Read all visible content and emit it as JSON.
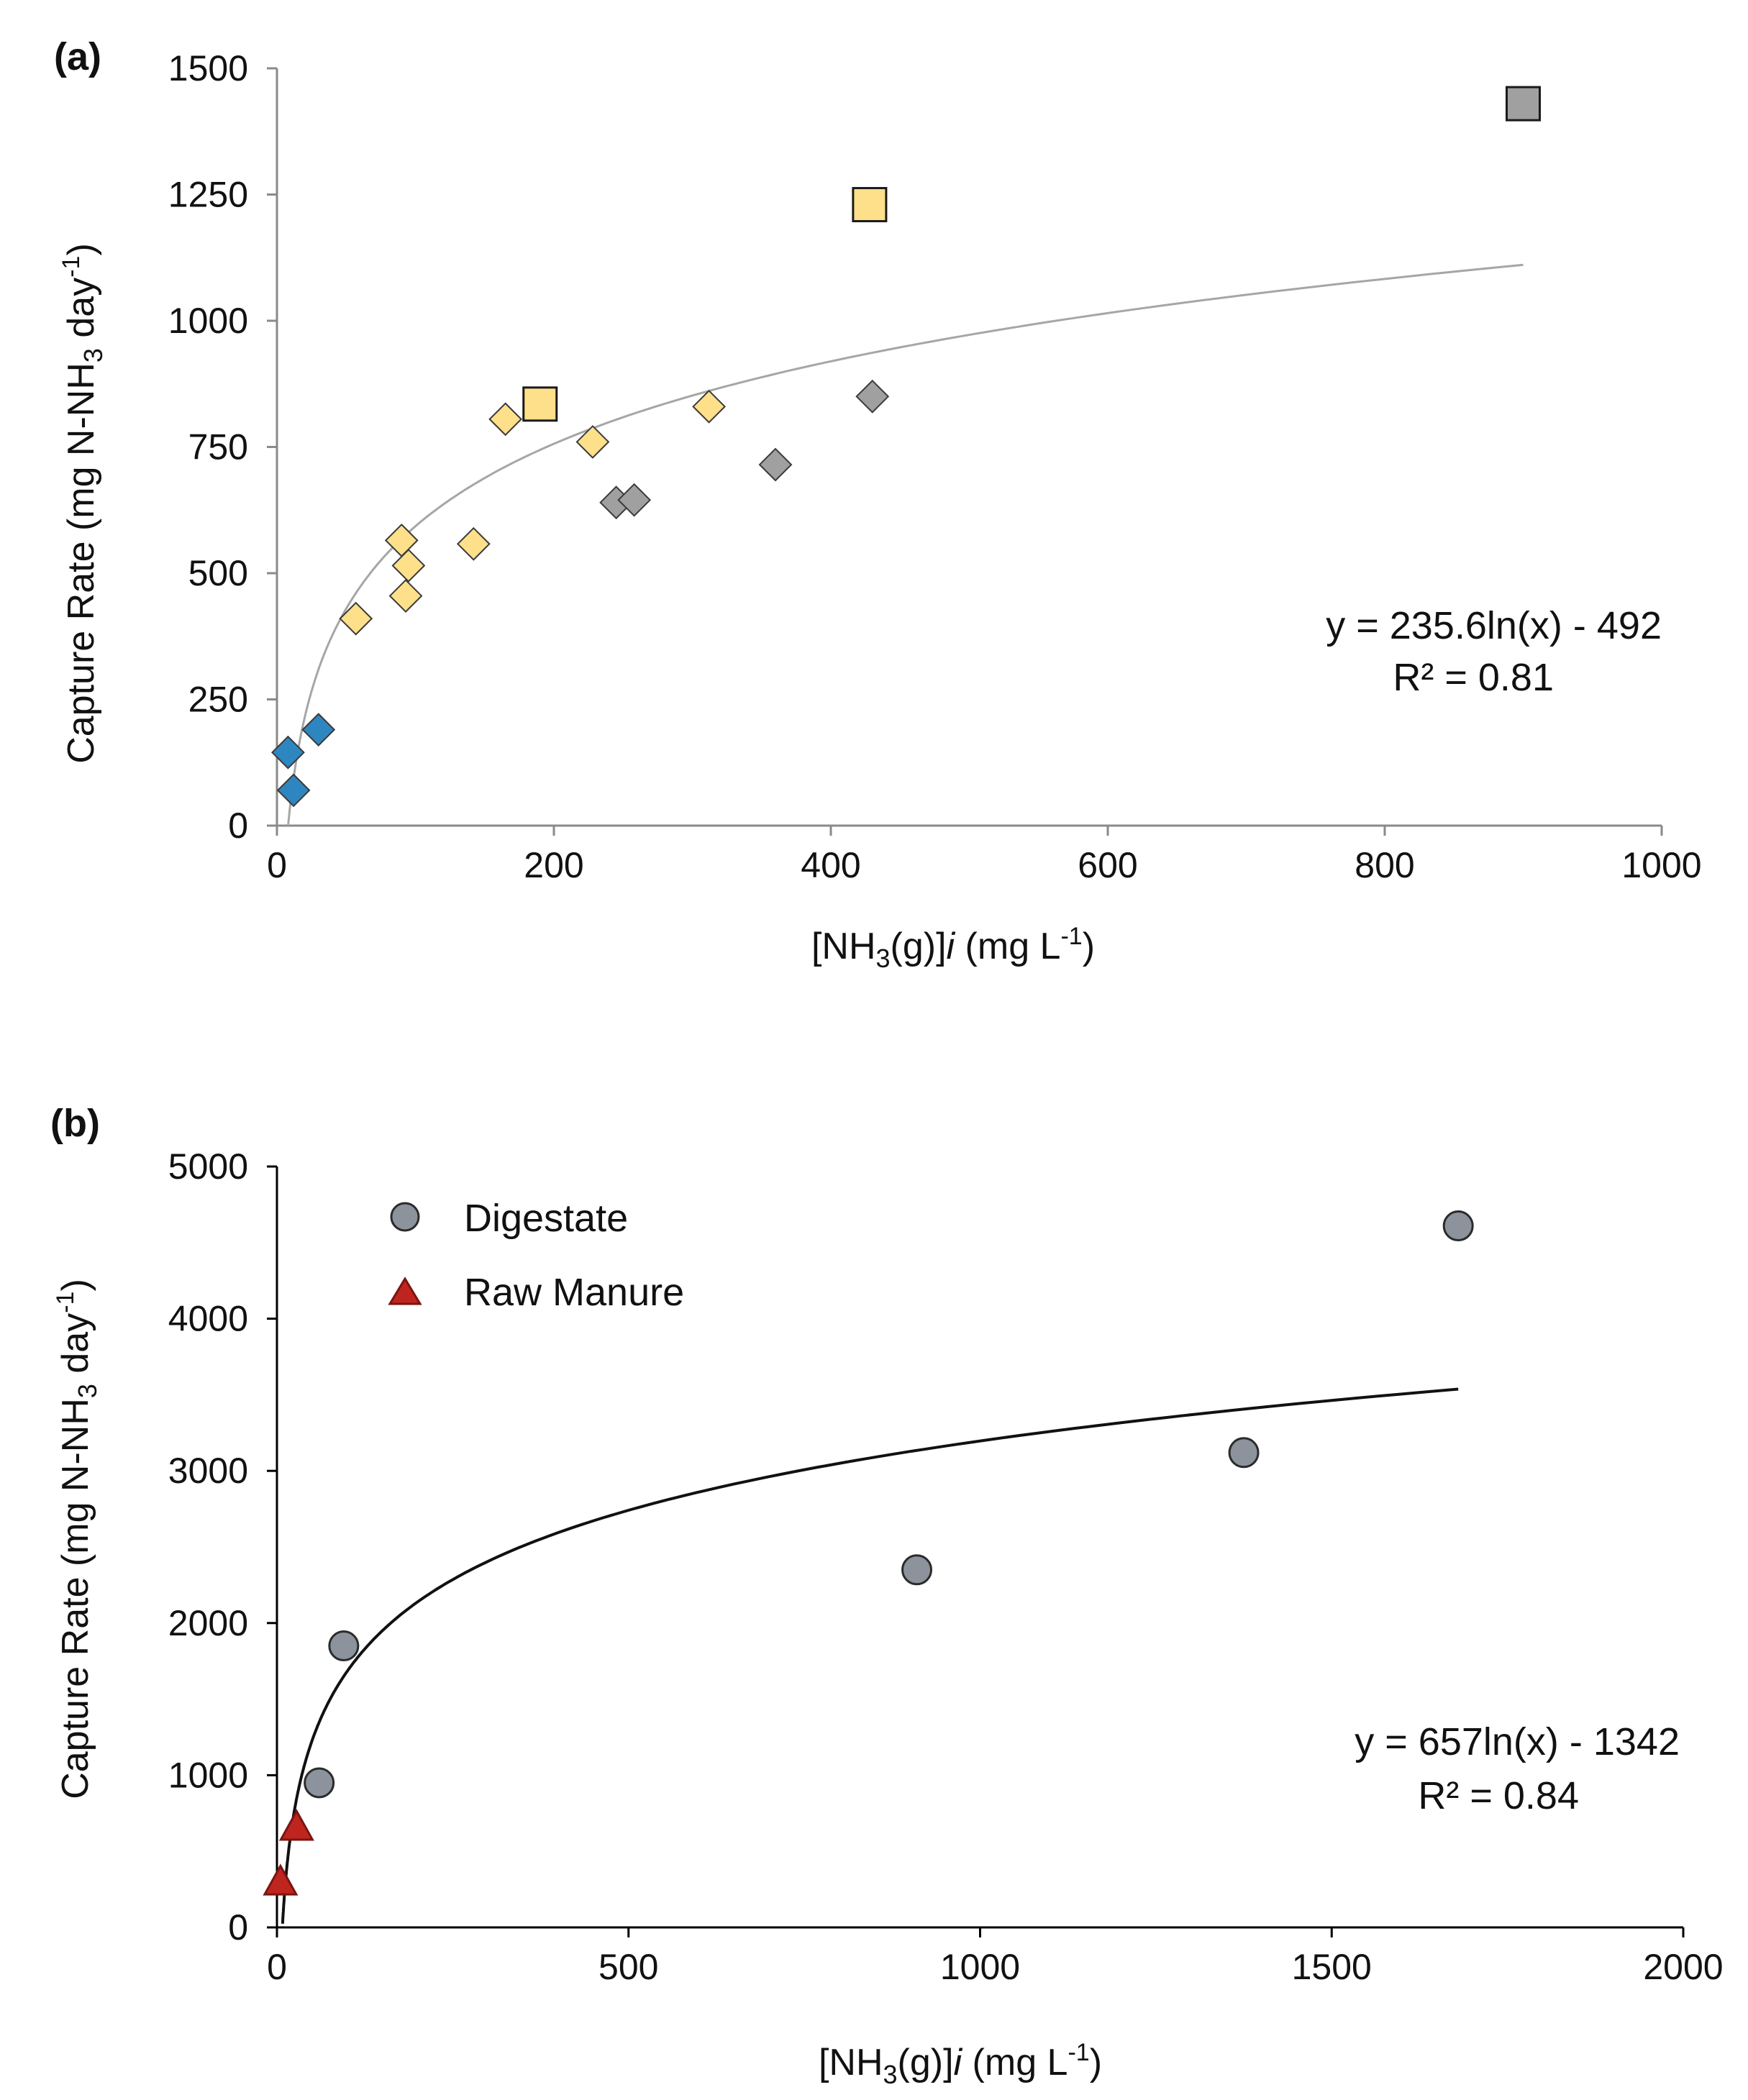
{
  "chart_data": [
    {
      "type": "scatter",
      "panel_label": "(a)",
      "ylabel": "Capture Rate (mg N-NH3 day-1)",
      "ylabel_parts": {
        "pre": "Capture Rate (mg N-NH",
        "sub": "3",
        "mid": " day",
        "sup": "-1",
        "post": ")"
      },
      "xlabel": "[NH3(g)]i (mg L-1)",
      "xlabel_parts": {
        "pre": "[NH",
        "sub": "3",
        "mid": "(g)]",
        "italic": "i",
        "mid2": " (mg L",
        "sup": "-1",
        "post": ")"
      },
      "xlim": [
        0,
        1000
      ],
      "ylim": [
        0,
        1500
      ],
      "x_ticks": [
        "0",
        "200",
        "400",
        "600",
        "800",
        "1000"
      ],
      "y_ticks": [
        "0",
        "250",
        "500",
        "750",
        "1000",
        "1250",
        "1500"
      ],
      "grid": false,
      "series": [
        {
          "name": "blue diamonds",
          "marker": "diamond",
          "color": "#2e86c1",
          "x": [
            8,
            12,
            30
          ],
          "y": [
            145,
            70,
            190
          ]
        },
        {
          "name": "yellow diamonds",
          "marker": "diamond",
          "color": "#ffe08a",
          "x": [
            57,
            90,
            93,
            95,
            142,
            165,
            228,
            312
          ],
          "y": [
            410,
            565,
            455,
            515,
            558,
            805,
            760,
            830
          ]
        },
        {
          "name": "grey diamonds",
          "marker": "diamond",
          "color": "#a0a0a0",
          "x": [
            245,
            258,
            360,
            430
          ],
          "y": [
            640,
            645,
            715,
            850
          ]
        },
        {
          "name": "yellow squares",
          "marker": "square",
          "color": "#ffe08a",
          "x": [
            190,
            428
          ],
          "y": [
            835,
            1230
          ]
        },
        {
          "name": "grey squares",
          "marker": "square",
          "color": "#a0a0a0",
          "x": [
            900
          ],
          "y": [
            1430
          ]
        }
      ],
      "fit": {
        "type": "log",
        "a": 235.6,
        "b": -492,
        "x_range": [
          8,
          900
        ],
        "color": "#a6a6a6"
      },
      "equation": "y = 235.6ln(x) - 492",
      "r2": "R² = 0.81"
    },
    {
      "type": "scatter",
      "panel_label": "(b)",
      "ylabel": "Capture Rate (mg N-NH3 day-1)",
      "ylabel_parts": {
        "pre": "Capture Rate (mg N-NH",
        "sub": "3",
        "mid": " day",
        "sup": "-1",
        "post": ")"
      },
      "xlabel": "[NH3(g)]i (mg L-1)",
      "xlabel_parts": {
        "pre": "[NH",
        "sub": "3",
        "mid": "(g)]",
        "italic": "i",
        "mid2": " (mg L",
        "sup": "-1",
        "post": ")"
      },
      "xlim": [
        0,
        2000
      ],
      "ylim": [
        0,
        5000
      ],
      "x_ticks": [
        "0",
        "500",
        "1000",
        "1500",
        "2000"
      ],
      "y_ticks": [
        "0",
        "1000",
        "2000",
        "3000",
        "4000",
        "5000"
      ],
      "grid": false,
      "legend": [
        {
          "label": "Digestate",
          "marker": "circle",
          "color": "#8c939c"
        },
        {
          "label": "Raw Manure",
          "marker": "triangle",
          "color": "#c0241f"
        }
      ],
      "legend_position": "top-left",
      "series": [
        {
          "name": "Digestate",
          "marker": "circle",
          "color": "#8c939c",
          "x": [
            60,
            95,
            910,
            1375,
            1680
          ],
          "y": [
            950,
            1850,
            2350,
            3120,
            4610
          ]
        },
        {
          "name": "Raw Manure",
          "marker": "triangle",
          "color": "#c0241f",
          "x": [
            5,
            28
          ],
          "y": [
            300,
            660
          ]
        }
      ],
      "fit": {
        "type": "log",
        "a": 657,
        "b": -1342,
        "x_range": [
          8,
          1680
        ],
        "color": "#111111"
      },
      "equation": "y = 657ln(x) - 1342",
      "r2": "R² = 0.84"
    }
  ]
}
